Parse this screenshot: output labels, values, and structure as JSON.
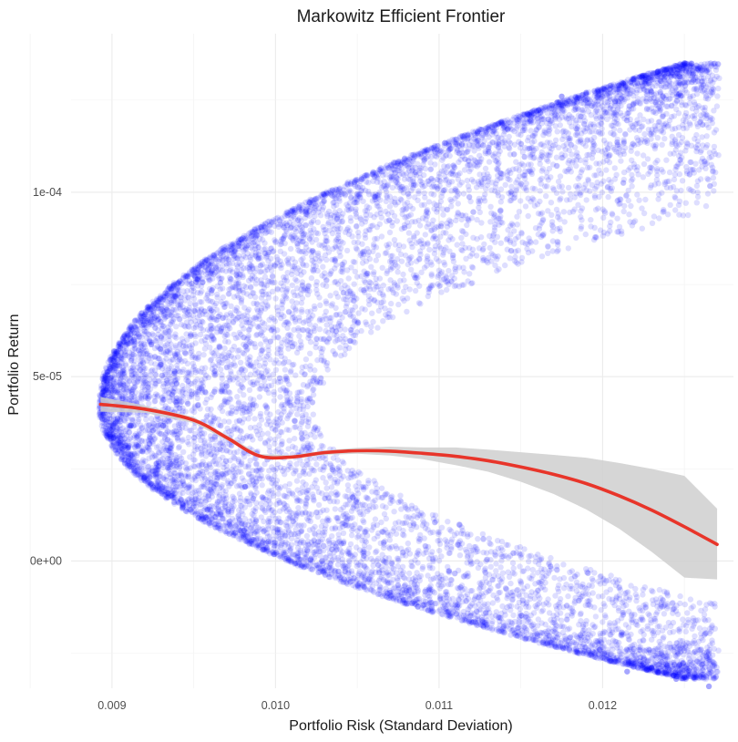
{
  "chart_data": {
    "type": "scatter",
    "title": "Markowitz Efficient Frontier",
    "xlabel": "Portfolio Risk (Standard Deviation)",
    "ylabel": "Portfolio Return",
    "xlim": [
      0.00875,
      0.0128
    ],
    "ylim": [
      -3.45e-05,
      0.000143
    ],
    "x_ticks": [
      0.009,
      0.01,
      0.011,
      0.012
    ],
    "x_tick_labels": [
      "0.009",
      "0.010",
      "0.011",
      "0.012"
    ],
    "y_ticks": [
      0.0,
      5e-05,
      0.0001
    ],
    "y_tick_labels": [
      "0e+00",
      "5e-05",
      "1e-04"
    ],
    "grid": true,
    "legend": "none",
    "scatter": {
      "description_points": "simulated random portfolios forming a parabolic cloud; min-variance point near x=0.00893, y=4.2e-05",
      "color": "#0000ff",
      "opacity": 0.13,
      "approx_count": 10000,
      "frontier_vertex": {
        "x": 0.00893,
        "y": 4.2e-05
      },
      "frontier_upper_end": {
        "x": 0.0125,
        "y": 0.000135
      },
      "frontier_lower_end": {
        "x": 0.0127,
        "y": -3.4e-05
      },
      "highlighted_points": [
        {
          "x": 0.01155,
          "y": 0.000121
        },
        {
          "x": 0.01175,
          "y": 0.000126
        },
        {
          "x": 0.0119,
          "y": 0.000127
        },
        {
          "x": 0.0121,
          "y": 0.000129
        },
        {
          "x": 0.01228,
          "y": 0.000131
        },
        {
          "x": 0.0125,
          "y": 0.000135
        },
        {
          "x": 0.01215,
          "y": -3e-05
        },
        {
          "x": 0.0123,
          "y": -2.9e-05
        },
        {
          "x": 0.01245,
          "y": -3.2e-05
        },
        {
          "x": 0.01265,
          "y": -3.4e-05
        }
      ]
    },
    "smooth": {
      "name": "loess fit",
      "color": "#e8352a",
      "band_color": "#cfcfcf",
      "x": [
        0.00893,
        0.0092,
        0.0095,
        0.0097,
        0.0099,
        0.0101,
        0.0103,
        0.0105,
        0.0107,
        0.0109,
        0.0111,
        0.0113,
        0.0115,
        0.0117,
        0.0119,
        0.0121,
        0.0123,
        0.0125,
        0.0127
      ],
      "y": [
        4.25e-05,
        4.12e-05,
        3.82e-05,
        3.35e-05,
        2.85e-05,
        2.82e-05,
        2.94e-05,
        2.99e-05,
        2.98e-05,
        2.92e-05,
        2.84e-05,
        2.72e-05,
        2.55e-05,
        2.35e-05,
        2.1e-05,
        1.77e-05,
        1.38e-05,
        9.3e-06,
        4.5e-06
      ],
      "lower": [
        4.05e-05,
        4.02e-05,
        3.74e-05,
        3.28e-05,
        2.8e-05,
        2.77e-05,
        2.88e-05,
        2.91e-05,
        2.86e-05,
        2.76e-05,
        2.6e-05,
        2.42e-05,
        2.15e-05,
        1.82e-05,
        1.4e-05,
        8.8e-06,
        2.5e-06,
        -4.5e-06,
        -5e-06
      ],
      "upper": [
        4.45e-05,
        4.22e-05,
        3.9e-05,
        3.42e-05,
        2.9e-05,
        2.87e-05,
        3e-05,
        3.07e-05,
        3.1e-05,
        3.08e-05,
        3.08e-05,
        3.02e-05,
        2.95e-05,
        2.88e-05,
        2.8e-05,
        2.66e-05,
        2.5e-05,
        2.31e-05,
        1.42e-05
      ]
    }
  }
}
